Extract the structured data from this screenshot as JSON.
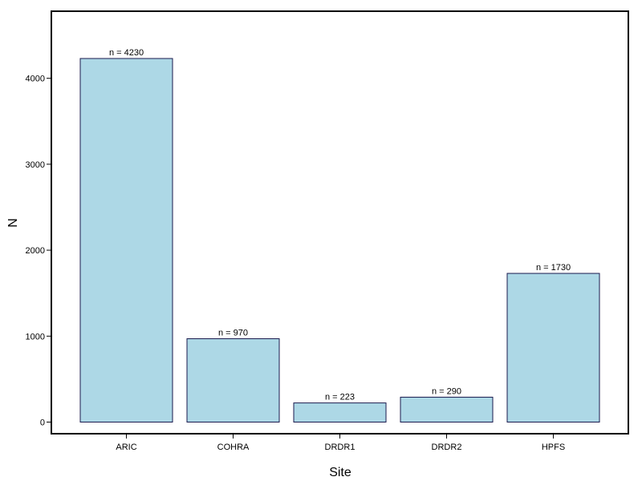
{
  "chart_data": {
    "type": "bar",
    "xlabel": "Site",
    "ylabel": "N",
    "categories": [
      "ARIC",
      "COHRA",
      "DRDR1",
      "DRDR2",
      "HPFS"
    ],
    "values": [
      4230,
      970,
      223,
      290,
      1730
    ],
    "bar_labels": [
      "n = 4230",
      "n = 970",
      "n = 223",
      "n = 290",
      "n = 1730"
    ],
    "yticks": [
      0,
      1000,
      2000,
      3000,
      4000
    ],
    "ylim": [
      -135,
      4780
    ],
    "grid": false,
    "legend": "none",
    "colors": {
      "bar_fill": "#add8e6",
      "bar_stroke": "#1a1a4e",
      "frame": "#000000"
    }
  }
}
